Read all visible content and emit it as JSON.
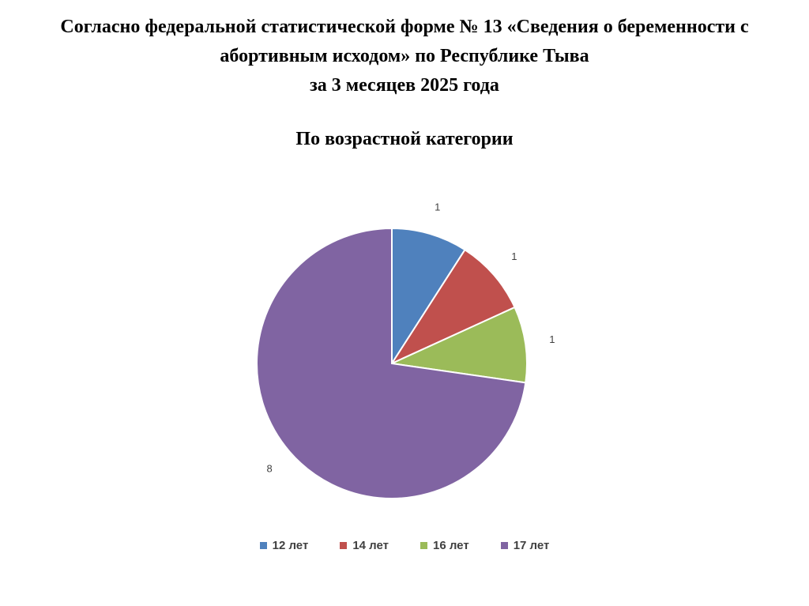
{
  "header": {
    "title_lines": [
      "Согласно федеральной статистической форме № 13 «Сведения о беременности с",
      "абортивным исходом» по Республике Тыва",
      "за 3 месяцев 2025 года"
    ]
  },
  "chart_data": {
    "type": "pie",
    "title": "По возрастной категории",
    "categories": [
      "12 лет",
      "14 лет",
      "16 лет",
      "17 лет"
    ],
    "values": [
      1,
      1,
      1,
      8
    ],
    "colors": [
      "#4F81BD",
      "#C0504D",
      "#9BBB59",
      "#8064A2"
    ],
    "start_angle": "top, clockwise",
    "data_labels": [
      "1",
      "1",
      "1",
      "8"
    ],
    "legend_position": "bottom"
  }
}
